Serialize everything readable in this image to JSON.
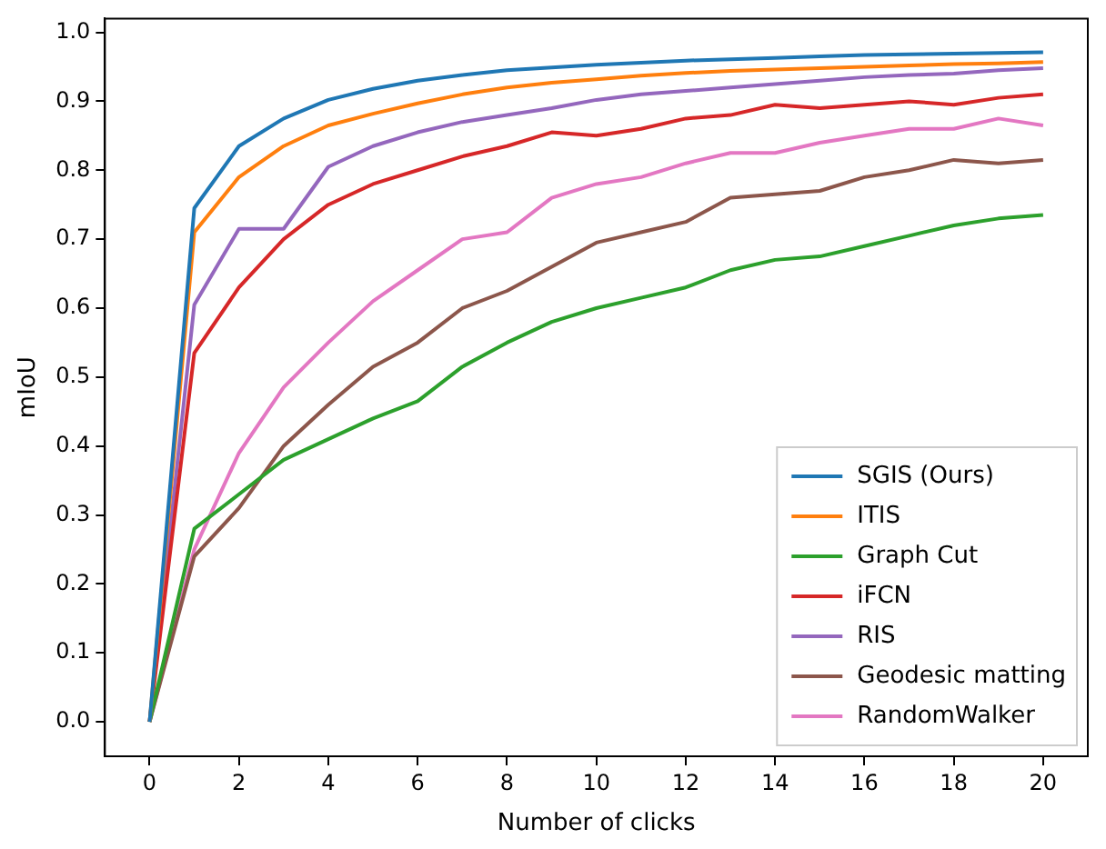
{
  "chart_data": {
    "type": "line",
    "xlabel": "Number of clicks",
    "ylabel": "mIoU",
    "x": [
      0,
      1,
      2,
      3,
      4,
      5,
      6,
      7,
      8,
      9,
      10,
      11,
      12,
      13,
      14,
      15,
      16,
      17,
      18,
      19,
      20
    ],
    "xlim": [
      -1,
      21
    ],
    "xticks": [
      0,
      2,
      4,
      6,
      8,
      10,
      12,
      14,
      16,
      18,
      20
    ],
    "ylim": [
      -0.05,
      1.02
    ],
    "yticks": [
      {
        "value": 0,
        "label": "0.0"
      },
      0.1,
      0.2,
      0.3,
      0.4,
      0.5,
      0.6,
      0.7,
      0.8,
      0.9,
      {
        "value": 1,
        "label": "1.0"
      }
    ],
    "grid": false,
    "legend": "bottom right",
    "marker": "none",
    "line_style": "solid",
    "series": [
      {
        "name": "SGIS (Ours)",
        "color": "#1f77b4",
        "values": [
          0,
          0.745,
          0.835,
          0.875,
          0.902,
          0.918,
          0.93,
          0.938,
          0.945,
          0.949,
          0.953,
          0.956,
          0.959,
          0.961,
          0.963,
          0.965,
          0.967,
          0.968,
          0.969,
          0.97,
          0.971
        ]
      },
      {
        "name": "ITIS",
        "color": "#ff7f0e",
        "values": [
          0,
          0.71,
          0.79,
          0.835,
          0.865,
          0.882,
          0.897,
          0.91,
          0.92,
          0.927,
          0.932,
          0.937,
          0.941,
          0.944,
          0.946,
          0.948,
          0.95,
          0.952,
          0.954,
          0.955,
          0.957
        ]
      },
      {
        "name": "Graph Cut",
        "color": "#2ca02c",
        "values": [
          0,
          0.28,
          0.33,
          0.38,
          0.41,
          0.44,
          0.465,
          0.515,
          0.55,
          0.58,
          0.6,
          0.615,
          0.63,
          0.655,
          0.67,
          0.675,
          0.69,
          0.705,
          0.72,
          0.73,
          0.735
        ]
      },
      {
        "name": "iFCN",
        "color": "#d62728",
        "values": [
          0,
          0.535,
          0.63,
          0.7,
          0.75,
          0.78,
          0.8,
          0.82,
          0.835,
          0.855,
          0.85,
          0.86,
          0.875,
          0.88,
          0.895,
          0.89,
          0.895,
          0.9,
          0.895,
          0.905,
          0.91
        ]
      },
      {
        "name": "RIS",
        "color": "#9467bd",
        "values": [
          0,
          0.605,
          0.715,
          0.715,
          0.805,
          0.835,
          0.855,
          0.87,
          0.88,
          0.89,
          0.902,
          0.91,
          0.915,
          0.92,
          0.925,
          0.93,
          0.935,
          0.938,
          0.94,
          0.945,
          0.948
        ]
      },
      {
        "name": "Geodesic matting",
        "color": "#8c564b",
        "values": [
          0,
          0.24,
          0.31,
          0.4,
          0.46,
          0.515,
          0.55,
          0.6,
          0.625,
          0.66,
          0.695,
          0.71,
          0.725,
          0.76,
          0.765,
          0.77,
          0.79,
          0.8,
          0.815,
          0.81,
          0.815
        ]
      },
      {
        "name": "RandomWalker",
        "color": "#e377c2",
        "values": [
          0,
          0.25,
          0.39,
          0.485,
          0.55,
          0.61,
          0.655,
          0.7,
          0.71,
          0.76,
          0.78,
          0.79,
          0.81,
          0.825,
          0.825,
          0.84,
          0.85,
          0.86,
          0.86,
          0.875,
          0.865
        ]
      }
    ]
  }
}
